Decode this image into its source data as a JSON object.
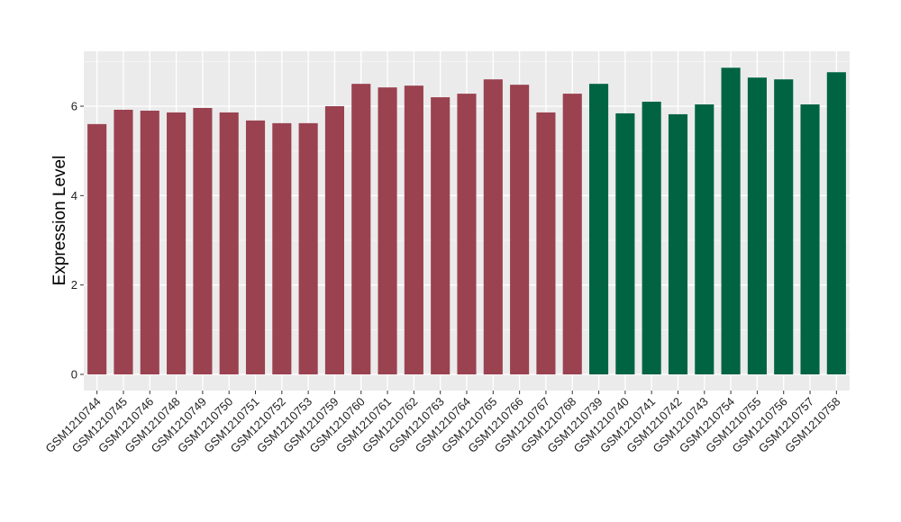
{
  "chart_data": {
    "type": "bar",
    "title": "",
    "xlabel": "",
    "ylabel": "Expression Level",
    "ylim": [
      0,
      7.2
    ],
    "yticks": [
      0,
      2,
      4,
      6
    ],
    "grid": true,
    "background": "#EBEBEB",
    "categories": [
      "GSM1210744",
      "GSM1210745",
      "GSM1210746",
      "GSM1210748",
      "GSM1210749",
      "GSM1210750",
      "GSM1210751",
      "GSM1210752",
      "GSM1210753",
      "GSM1210759",
      "GSM1210760",
      "GSM1210761",
      "GSM1210762",
      "GSM1210763",
      "GSM1210764",
      "GSM1210765",
      "GSM1210766",
      "GSM1210767",
      "GSM1210768",
      "GSM1210739",
      "GSM1210740",
      "GSM1210741",
      "GSM1210742",
      "GSM1210743",
      "GSM1210754",
      "GSM1210755",
      "GSM1210756",
      "GSM1210757",
      "GSM1210758"
    ],
    "values": [
      5.6,
      5.92,
      5.9,
      5.86,
      5.96,
      5.86,
      5.68,
      5.62,
      5.62,
      6.0,
      6.5,
      6.42,
      6.46,
      6.2,
      6.28,
      6.6,
      6.48,
      5.86,
      6.28,
      6.5,
      5.84,
      6.1,
      5.82,
      6.04,
      6.86,
      6.64,
      6.6,
      6.04,
      6.76
    ],
    "groups": [
      0,
      0,
      0,
      0,
      0,
      0,
      0,
      0,
      0,
      0,
      0,
      0,
      0,
      0,
      0,
      0,
      0,
      0,
      0,
      1,
      1,
      1,
      1,
      1,
      1,
      1,
      1,
      1,
      1
    ],
    "group_colors": [
      "#9A4250",
      "#006443"
    ]
  }
}
